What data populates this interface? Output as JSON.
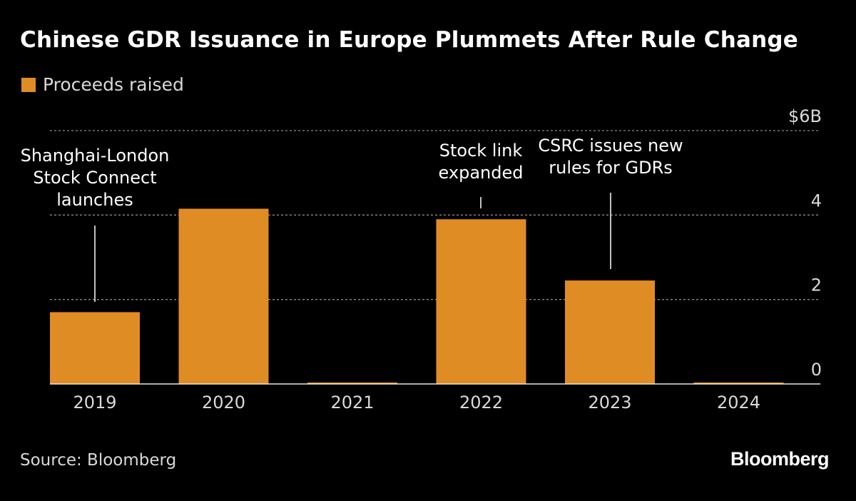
{
  "colors": {
    "background": "#000000",
    "bar": "#e08c25",
    "text": "#ffffff",
    "muted_text": "#d9d9d9",
    "grid": "#8a8a8a"
  },
  "chart_data": {
    "type": "bar",
    "title": "Chinese GDR Issuance in Europe Plummets After Rule Change",
    "categories": [
      "2019",
      "2020",
      "2021",
      "2022",
      "2023",
      "2024"
    ],
    "series": [
      {
        "name": "Proceeds raised",
        "values": [
          1.7,
          4.15,
          0.02,
          3.9,
          2.45,
          0.02
        ]
      }
    ],
    "ylim": [
      0,
      6
    ],
    "y_ticks": [
      {
        "value": 0,
        "label": "0"
      },
      {
        "value": 2,
        "label": "2"
      },
      {
        "value": 4,
        "label": "4"
      },
      {
        "value": 6,
        "label": "$6B"
      }
    ],
    "grid": true,
    "legend": "top-left",
    "annotations": [
      {
        "category": "2019",
        "lines": [
          "Shanghai-London",
          "Stock Connect",
          "launches"
        ]
      },
      {
        "category": "2022",
        "lines": [
          "Stock link",
          "expanded"
        ]
      },
      {
        "category": "2023",
        "lines": [
          "CSRC issues new",
          "rules for GDRs"
        ]
      }
    ]
  },
  "footer": {
    "source": "Source: Bloomberg",
    "brand": "Bloomberg"
  }
}
